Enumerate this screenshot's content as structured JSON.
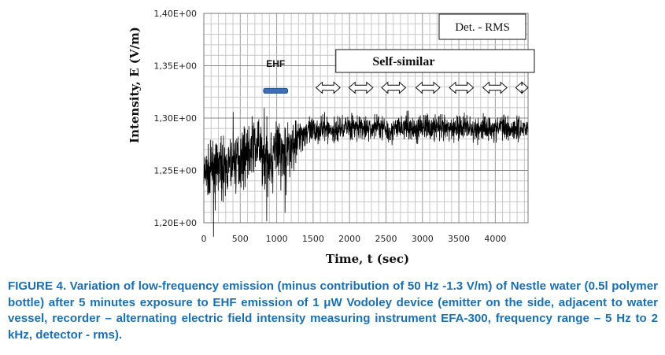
{
  "chart_data": {
    "type": "line",
    "xlabel": "Time, t (sec)",
    "ylabel": "Intensity, E (V/m)",
    "xlim": [
      0,
      4450
    ],
    "ylim": [
      1.2,
      1.4
    ],
    "x_ticks": [
      0,
      500,
      1000,
      1500,
      2000,
      2500,
      3000,
      3500,
      4000
    ],
    "y_ticks": [
      1.2,
      1.25,
      1.3,
      1.35,
      1.4
    ],
    "x_tick_labels": [
      "0",
      "500",
      "1000",
      "1500",
      "2000",
      "2500",
      "3000",
      "3500",
      "4000"
    ],
    "y_tick_labels": [
      "1,20E+00",
      "1,25E+00",
      "1,30E+00",
      "1,35E+00",
      "1,40E+00"
    ],
    "grid": true,
    "legend_box": "Det. - RMS",
    "annotations": {
      "ehf_label": "EHF",
      "ehf_interval": [
        820,
        1150
      ],
      "ehf_level": 1.326,
      "self_similar_label": "Self-similar",
      "self_similar_interval": [
        1920,
        4450
      ],
      "self_similar_level": 1.352,
      "period_arrows": [
        {
          "x0": 1540,
          "x1": 1870
        },
        {
          "x0": 1990,
          "x1": 2320
        },
        {
          "x0": 2440,
          "x1": 2770
        },
        {
          "x0": 2910,
          "x1": 3240
        },
        {
          "x0": 3370,
          "x1": 3700
        },
        {
          "x0": 3830,
          "x1": 4160
        },
        {
          "x0": 4280,
          "x1": 4450
        }
      ],
      "arrow_level": 1.329
    },
    "series": [
      {
        "color": "#000000",
        "x": [
          0,
          100,
          200,
          300,
          400,
          500,
          600,
          700,
          800,
          900,
          1000,
          1100,
          1200,
          1300,
          1400,
          1500,
          1600,
          1700,
          1800,
          1900,
          2000,
          2100,
          2200,
          2300,
          2400,
          2500,
          2600,
          2700,
          2800,
          2900,
          3000,
          3100,
          3200,
          3300,
          3400,
          3500,
          3600,
          3700,
          3800,
          3900,
          4000,
          4100,
          4200,
          4300,
          4400,
          4450
        ],
        "values": [
          1.244,
          1.25,
          1.254,
          1.25,
          1.258,
          1.262,
          1.268,
          1.275,
          1.266,
          1.262,
          1.27,
          1.262,
          1.272,
          1.282,
          1.288,
          1.286,
          1.29,
          1.289,
          1.287,
          1.291,
          1.293,
          1.29,
          1.291,
          1.289,
          1.294,
          1.289,
          1.288,
          1.292,
          1.291,
          1.289,
          1.293,
          1.29,
          1.291,
          1.289,
          1.29,
          1.291,
          1.292,
          1.288,
          1.29,
          1.291,
          1.289,
          1.293,
          1.29,
          1.291,
          1.29,
          1.292
        ],
        "noise": [
          0.012,
          0.012,
          0.012,
          0.012,
          0.013,
          0.013,
          0.013,
          0.013,
          0.016,
          0.016,
          0.016,
          0.016,
          0.014,
          0.008,
          0.007,
          0.007,
          0.006,
          0.006,
          0.006,
          0.006,
          0.006,
          0.006,
          0.006,
          0.006,
          0.006,
          0.006,
          0.006,
          0.006,
          0.006,
          0.006,
          0.006,
          0.006,
          0.006,
          0.006,
          0.006,
          0.006,
          0.006,
          0.006,
          0.006,
          0.006,
          0.006,
          0.006,
          0.006,
          0.006,
          0.006,
          0.006
        ]
      }
    ]
  },
  "caption": "FIGURE 4. Variation of low-frequency emission (minus contribution of 50 Hz -1.3 V/m) of Nestle water (0.5l polymer bottle) after 5 minutes exposure to EHF emission of 1 μW Vodoley device (emitter on the side, adjacent to water vessel, recorder – alternating electric field intensity measuring instrument EFA-300, frequency range – 5 Hz to 2 kHz, detector - rms)."
}
